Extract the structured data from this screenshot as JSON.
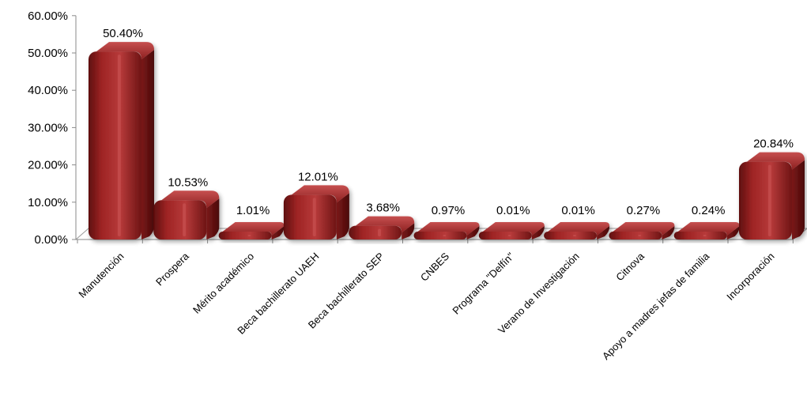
{
  "chart_data": {
    "type": "bar",
    "style": "3d-rounded-columns",
    "title": "",
    "xlabel": "",
    "ylabel": "",
    "ylim": [
      0,
      60
    ],
    "y_ticks": [
      "0.00%",
      "10.00%",
      "20.00%",
      "30.00%",
      "40.00%",
      "50.00%",
      "60.00%"
    ],
    "grid": false,
    "legend": "none",
    "bar_color": "#9e2424",
    "categories": [
      "Manutención",
      "Prospera",
      "Mérito académico",
      "Beca bachillerato UAEH",
      "Beca bachillerato SEP",
      "CNBES",
      "Programa \"Delfín\"",
      "Verano de Investigación",
      "Citnova",
      "Apoyo a madres jefas de familia",
      "Incorporación"
    ],
    "values": [
      50.4,
      10.53,
      1.01,
      12.01,
      3.68,
      0.97,
      0.01,
      0.01,
      0.27,
      0.24,
      20.84
    ],
    "data_labels": [
      "50.40%",
      "10.53%",
      "1.01%",
      "12.01%",
      "3.68%",
      "0.97%",
      "0.01%",
      "0.01%",
      "0.27%",
      "0.24%",
      "20.84%"
    ]
  }
}
